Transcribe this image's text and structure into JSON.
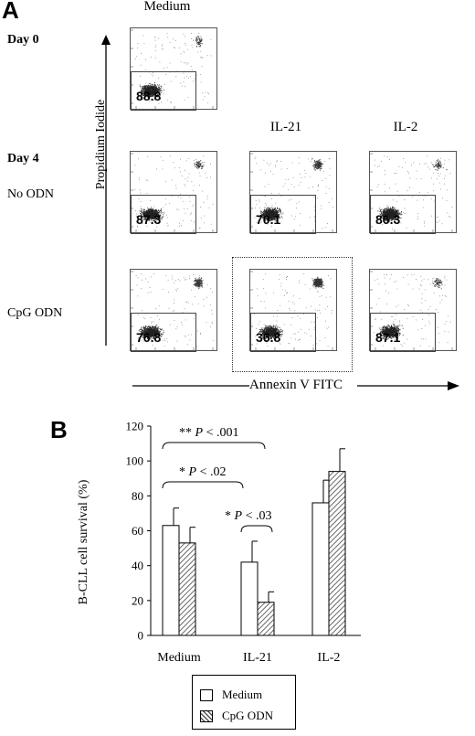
{
  "panel_a": {
    "letter": "A",
    "top_label": "Medium",
    "col_labels": [
      "IL-21",
      "IL-2"
    ],
    "row_labels": {
      "day0": "Day 0",
      "day4": "Day 4",
      "no_odn": "No ODN",
      "cpg_odn": "CpG ODN"
    },
    "y_axis_title": "Propidium Iodide",
    "x_axis_title": "Annexin V FITC",
    "plots": [
      {
        "id": "day0-medium",
        "value": "88.8"
      },
      {
        "id": "noodn-medium",
        "value": "87.3"
      },
      {
        "id": "noodn-il21",
        "value": "70.1"
      },
      {
        "id": "noodn-il2",
        "value": "86.3"
      },
      {
        "id": "cpg-medium",
        "value": "76.8"
      },
      {
        "id": "cpg-il21",
        "value": "36.8"
      },
      {
        "id": "cpg-il2",
        "value": "87.1"
      }
    ]
  },
  "chart_data": {
    "type": "bar",
    "panel_letter": "B",
    "categories": [
      "Medium",
      "IL-21",
      "IL-2"
    ],
    "series": [
      {
        "name": "Medium",
        "values": [
          63,
          42,
          76
        ],
        "errors": [
          10,
          12,
          13
        ]
      },
      {
        "name": "CpG ODN",
        "values": [
          53,
          19,
          94
        ],
        "errors": [
          9,
          6,
          13
        ]
      }
    ],
    "ylabel": "B-CLL cell survival (%)",
    "ylim": [
      0,
      120
    ],
    "yticks": [
      0,
      20,
      40,
      60,
      80,
      100,
      120
    ],
    "annotations": [
      {
        "stars": "**",
        "text": "P < .001"
      },
      {
        "stars": "*",
        "text": "P < .02"
      },
      {
        "stars": "*",
        "text": "P < .03"
      }
    ],
    "legend_position": "bottom"
  }
}
